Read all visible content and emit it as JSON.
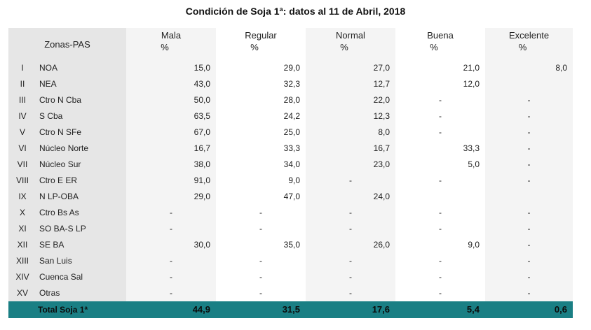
{
  "title": "Condición de Soja 1ª: datos al 11 de Abril, 2018",
  "header": {
    "zona": "Zonas-PAS",
    "cols": [
      {
        "label": "Mala",
        "unit": "%"
      },
      {
        "label": "Regular",
        "unit": "%"
      },
      {
        "label": "Normal",
        "unit": "%"
      },
      {
        "label": "Buena",
        "unit": "%"
      },
      {
        "label": "Excelente",
        "unit": "%"
      }
    ]
  },
  "rows": [
    {
      "roman": "I",
      "zona": "NOA",
      "vals": [
        "15,0",
        "29,0",
        "27,0",
        "21,0",
        "8,0"
      ]
    },
    {
      "roman": "II",
      "zona": "NEA",
      "vals": [
        "43,0",
        "32,3",
        "12,7",
        "12,0",
        ""
      ]
    },
    {
      "roman": "III",
      "zona": "Ctro N Cba",
      "vals": [
        "50,0",
        "28,0",
        "22,0",
        "-",
        "-"
      ]
    },
    {
      "roman": "IV",
      "zona": "S Cba",
      "vals": [
        "63,5",
        "24,2",
        "12,3",
        "-",
        "-"
      ]
    },
    {
      "roman": "V",
      "zona": "Ctro N SFe",
      "vals": [
        "67,0",
        "25,0",
        "8,0",
        "-",
        "-"
      ]
    },
    {
      "roman": "VI",
      "zona": "Núcleo Norte",
      "vals": [
        "16,7",
        "33,3",
        "16,7",
        "33,3",
        "-"
      ]
    },
    {
      "roman": "VII",
      "zona": "Núcleo Sur",
      "vals": [
        "38,0",
        "34,0",
        "23,0",
        "5,0",
        "-"
      ]
    },
    {
      "roman": "VIII",
      "zona": "Ctro E ER",
      "vals": [
        "91,0",
        "9,0",
        "-",
        "-",
        "-"
      ]
    },
    {
      "roman": "IX",
      "zona": "N LP-OBA",
      "vals": [
        "29,0",
        "47,0",
        "24,0",
        "",
        ""
      ]
    },
    {
      "roman": "X",
      "zona": "Ctro Bs As",
      "vals": [
        "-",
        "-",
        "-",
        "-",
        "-"
      ]
    },
    {
      "roman": "XI",
      "zona": "SO BA-S LP",
      "vals": [
        "-",
        "-",
        "-",
        "-",
        "-"
      ]
    },
    {
      "roman": "XII",
      "zona": "SE BA",
      "vals": [
        "30,0",
        "35,0",
        "26,0",
        "9,0",
        "-"
      ]
    },
    {
      "roman": "XIII",
      "zona": "San Luis",
      "vals": [
        "-",
        "-",
        "-",
        "-",
        "-"
      ]
    },
    {
      "roman": "XIV",
      "zona": "Cuenca Sal",
      "vals": [
        "-",
        "-",
        "-",
        "-",
        "-"
      ]
    },
    {
      "roman": "XV",
      "zona": "Otras",
      "vals": [
        "-",
        "-",
        "-",
        "-",
        "-"
      ]
    }
  ],
  "total": {
    "label": "Total Soja 1ª",
    "vals": [
      "44,9",
      "31,5",
      "17,6",
      "5,4",
      "0,6"
    ]
  },
  "colors": {
    "header_shade": "#e6e6e6",
    "total_bar": "#1a7f84"
  }
}
